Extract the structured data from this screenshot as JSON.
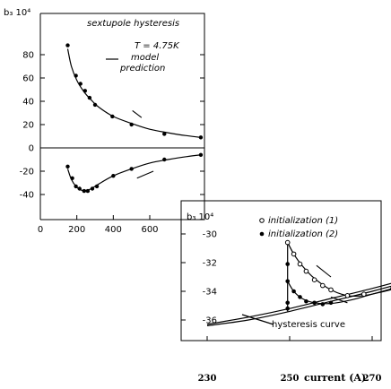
{
  "chart_data": [
    {
      "type": "scatter",
      "title": "sextupole hysteresis",
      "temperature_label": "T = 4.75K",
      "ylabel": "b₃ 10⁴",
      "xlabel": "",
      "xlim": [
        0,
        900
      ],
      "ylim": [
        -45,
        95
      ],
      "xticks": [
        0,
        200,
        400,
        600
      ],
      "yticks": [
        80,
        60,
        40,
        20,
        0,
        -20,
        -40
      ],
      "model_label_1": "model",
      "model_label_2": "prediction",
      "series": [
        {
          "values": [
            {
              "x": 150,
              "y": 88
            },
            {
              "x": 195,
              "y": 62
            },
            {
              "x": 220,
              "y": 55
            },
            {
              "x": 245,
              "y": 49
            },
            {
              "x": 270,
              "y": 43
            },
            {
              "x": 300,
              "y": 37
            },
            {
              "x": 395,
              "y": 27
            },
            {
              "x": 500,
              "y": 20
            },
            {
              "x": 680,
              "y": 12
            },
            {
              "x": 880,
              "y": 9
            },
            {
              "x": 150,
              "y": -16
            },
            {
              "x": 175,
              "y": -26
            },
            {
              "x": 195,
              "y": -33
            },
            {
              "x": 215,
              "y": -35
            },
            {
              "x": 240,
              "y": -37
            },
            {
              "x": 260,
              "y": -37
            },
            {
              "x": 285,
              "y": -35
            },
            {
              "x": 310,
              "y": -33
            },
            {
              "x": 400,
              "y": -24
            },
            {
              "x": 500,
              "y": -18
            },
            {
              "x": 680,
              "y": -10
            },
            {
              "x": 880,
              "y": -6
            }
          ]
        }
      ],
      "model_curves": [
        [
          [
            150,
            85
          ],
          [
            170,
            70
          ],
          [
            200,
            58
          ],
          [
            240,
            48
          ],
          [
            280,
            41
          ],
          [
            320,
            35
          ],
          [
            400,
            27
          ],
          [
            500,
            21
          ],
          [
            600,
            16
          ],
          [
            700,
            13
          ],
          [
            800,
            10.5
          ],
          [
            880,
            9
          ]
        ],
        [
          [
            150,
            -18
          ],
          [
            170,
            -27
          ],
          [
            195,
            -33
          ],
          [
            220,
            -36
          ],
          [
            250,
            -36.5
          ],
          [
            280,
            -35
          ],
          [
            320,
            -31
          ],
          [
            400,
            -24
          ],
          [
            500,
            -18
          ],
          [
            600,
            -13
          ],
          [
            700,
            -10
          ],
          [
            800,
            -7.5
          ],
          [
            880,
            -6
          ]
        ]
      ],
      "model_dashes": [
        [
          [
            505,
            32
          ],
          [
            555,
            26
          ]
        ],
        [
          [
            530,
            -26
          ],
          [
            620,
            -20
          ]
        ]
      ]
    },
    {
      "type": "line",
      "ylabel": "b₃ 10⁴",
      "xlabel": "current (A)",
      "xlim": [
        230,
        290
      ],
      "ylim": [
        -38.5,
        -29
      ],
      "xticks": [
        230,
        250,
        270
      ],
      "yticks": [
        -30,
        -32,
        -34,
        -36
      ],
      "legend": [
        {
          "marker": "open",
          "label": "initialization (1)"
        },
        {
          "marker": "filled",
          "label": "initialization (2)"
        }
      ],
      "annotation": "hysteresis curve",
      "series": [
        {
          "name": "initialization (1)",
          "values": [
            {
              "x": 249.5,
              "y": -30.6
            },
            {
              "x": 251,
              "y": -31.4
            },
            {
              "x": 252.5,
              "y": -32.1
            },
            {
              "x": 254,
              "y": -32.6
            },
            {
              "x": 256,
              "y": -33.2
            },
            {
              "x": 258,
              "y": -33.6
            },
            {
              "x": 260,
              "y": -33.9
            },
            {
              "x": 264,
              "y": -34.3
            },
            {
              "x": 268,
              "y": -34.2
            },
            {
              "x": 275,
              "y": -33.8
            }
          ]
        },
        {
          "name": "initialization (2)",
          "values": [
            {
              "x": 249.5,
              "y": -33.3
            },
            {
              "x": 251,
              "y": -34.0
            },
            {
              "x": 252.5,
              "y": -34.4
            },
            {
              "x": 254,
              "y": -34.7
            },
            {
              "x": 256,
              "y": -34.8
            },
            {
              "x": 258,
              "y": -34.9
            },
            {
              "x": 260,
              "y": -34.8
            },
            {
              "x": 275,
              "y": -33.8
            }
          ]
        },
        {
          "name": "initialization (2)",
          "values": [
            {
              "x": 249.5,
              "y": -35.2
            },
            {
              "x": 249.5,
              "y": -34.8
            },
            {
              "x": 249.5,
              "y": -32.1
            }
          ]
        }
      ],
      "hysteresis_curves": [
        [
          [
            230,
            -36.4
          ],
          [
            240,
            -36.0
          ],
          [
            250,
            -35.4
          ],
          [
            260,
            -34.7
          ],
          [
            270,
            -34.0
          ],
          [
            280,
            -33.2
          ],
          [
            290,
            -32.2
          ]
        ],
        [
          [
            230,
            -36.3
          ],
          [
            240,
            -35.8
          ],
          [
            250,
            -35.2
          ],
          [
            260,
            -34.5
          ],
          [
            270,
            -33.8
          ],
          [
            280,
            -33.0
          ],
          [
            290,
            -32.0
          ]
        ]
      ],
      "init_curves": [
        [
          [
            249.5,
            -30.6
          ],
          [
            251,
            -31.4
          ],
          [
            253,
            -32.2
          ],
          [
            256,
            -33.1
          ],
          [
            260,
            -33.9
          ],
          [
            264,
            -34.3
          ],
          [
            268,
            -34.3
          ],
          [
            273,
            -34.0
          ],
          [
            280,
            -33.5
          ]
        ],
        [
          [
            249.5,
            -33.3
          ],
          [
            251,
            -34.0
          ],
          [
            253,
            -34.5
          ],
          [
            256,
            -34.8
          ],
          [
            260,
            -34.85
          ],
          [
            265,
            -34.6
          ],
          [
            270,
            -34.2
          ],
          [
            280,
            -33.4
          ]
        ]
      ],
      "vertical_segments": [
        [
          [
            249.5,
            -35.4
          ],
          [
            249.5,
            -30.6
          ]
        ]
      ],
      "dashes": [
        [
          [
            256.5,
            -32.2
          ],
          [
            260,
            -33.0
          ]
        ],
        [
          [
            260,
            -34.4
          ],
          [
            264,
            -34.8
          ]
        ]
      ]
    }
  ]
}
